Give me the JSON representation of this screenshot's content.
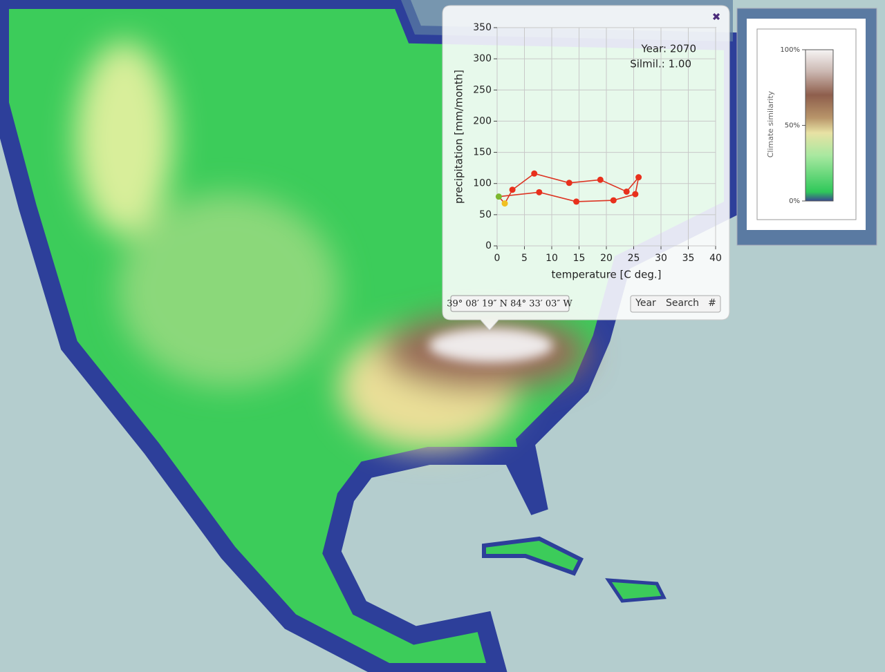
{
  "chart_data": {
    "type": "line",
    "x_label": "temperature [C deg.]",
    "y_label": "precipitation [mm/month]",
    "annotations": [
      "Year: 2070",
      "Silmil.: 1.00"
    ],
    "x": [
      0.3,
      1.4,
      2.8,
      6.8,
      13.2,
      18.9,
      23.7,
      25.9,
      25.3,
      21.3,
      14.5,
      7.7
    ],
    "values": [
      79,
      68,
      90,
      116,
      101,
      106,
      87,
      110,
      83,
      73,
      71,
      86
    ],
    "color": "#dd3322",
    "point_colors": [
      "#7cb82f",
      "#f0c020",
      "#e8301c",
      "#e8301c",
      "#e8301c",
      "#e8301c",
      "#e8301c",
      "#e8301c",
      "#e8301c",
      "#e8301c",
      "#e8301c",
      "#e8301c"
    ],
    "xlim": [
      0,
      40
    ],
    "xticks": [
      0,
      5,
      10,
      15,
      20,
      25,
      30,
      35,
      40
    ],
    "ylim": [
      0,
      350
    ],
    "yticks": [
      0,
      50,
      100,
      150,
      200,
      250,
      300,
      350
    ],
    "grid": true
  },
  "popup": {
    "coordinates": "39° 08′ 19″ N 84° 33′ 03″ W",
    "buttons": [
      "Year",
      "Search",
      "#"
    ]
  },
  "legend": {
    "title": "Climate similarity",
    "range": [
      0,
      100
    ],
    "ticks": [
      {
        "value": 100,
        "label": "100%"
      },
      {
        "value": 50,
        "label": "50%"
      },
      {
        "value": 0,
        "label": "0%"
      }
    ]
  }
}
